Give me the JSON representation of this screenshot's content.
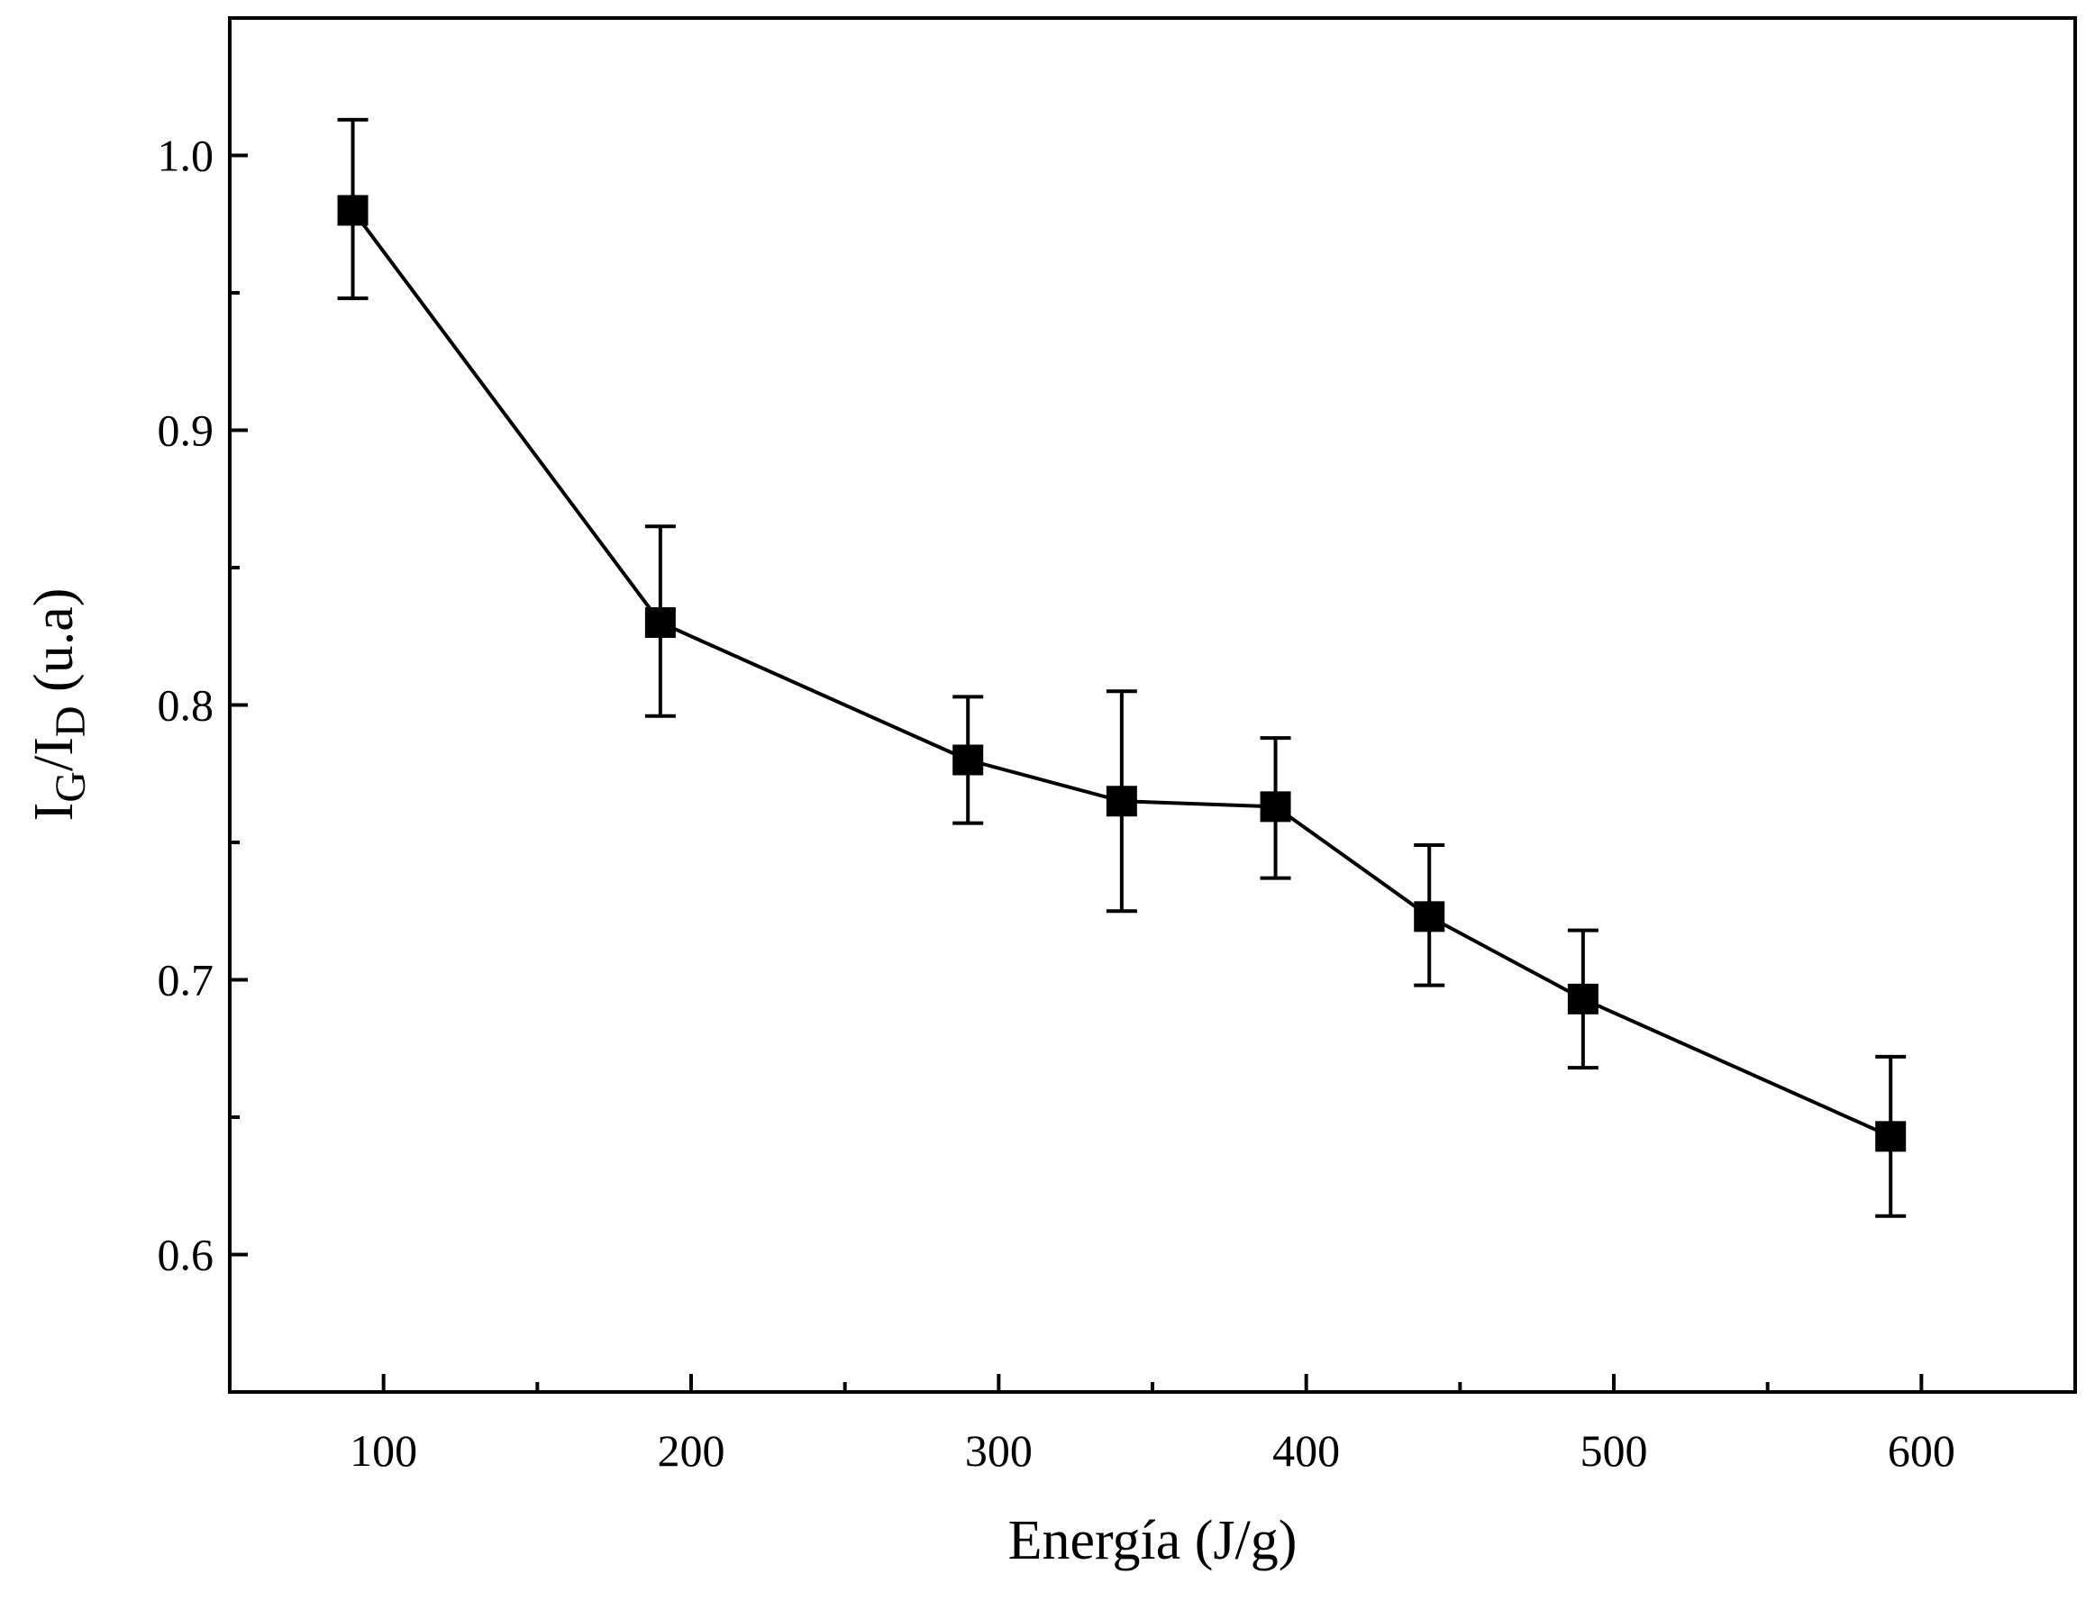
{
  "chart_data": {
    "type": "line",
    "xlabel": "Energía (J/g)",
    "ylabel": {
      "base": "I",
      "numerator_sub": "G",
      "sep": "/",
      "denominator_sub": "D",
      "units": " (u.a)"
    },
    "xlim": [
      50,
      650
    ],
    "ylim": [
      0.55,
      1.05
    ],
    "xticks": [
      100,
      200,
      300,
      400,
      500,
      600
    ],
    "xtick_labels": [
      "100",
      "200",
      "300",
      "400",
      "500",
      "600"
    ],
    "xminor": [
      150,
      250,
      350,
      450,
      550
    ],
    "yticks": [
      0.6,
      0.7,
      0.8,
      0.9,
      1.0
    ],
    "ytick_labels": [
      "0.6",
      "0.7",
      "0.8",
      "0.9",
      "1.0"
    ],
    "yminor": [
      0.65,
      0.75,
      0.85,
      0.95
    ],
    "grid": false,
    "marker": "square",
    "color": "#000000",
    "series": [
      {
        "x": [
          90,
          190,
          290,
          340,
          390,
          440,
          490,
          590
        ],
        "y": [
          0.98,
          0.83,
          0.78,
          0.765,
          0.763,
          0.723,
          0.693,
          0.643
        ],
        "err_upper": [
          1.013,
          0.865,
          0.803,
          0.805,
          0.788,
          0.749,
          0.718,
          0.672
        ],
        "err_lower": [
          0.948,
          0.796,
          0.757,
          0.725,
          0.737,
          0.698,
          0.668,
          0.614
        ]
      }
    ]
  }
}
